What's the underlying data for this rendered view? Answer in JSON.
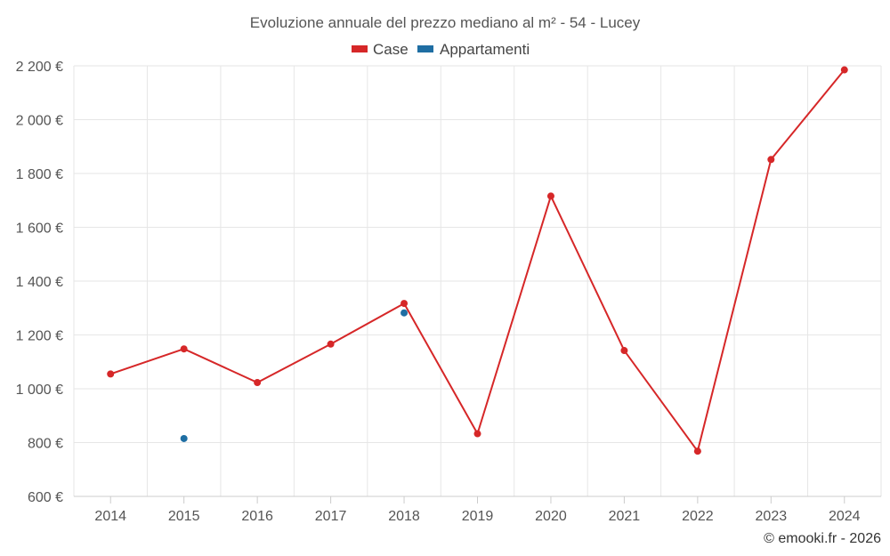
{
  "chart_data": {
    "type": "line",
    "title": "Evoluzione annuale del prezzo mediano al m² - 54 - Lucey",
    "categories": [
      "2014",
      "2015",
      "2016",
      "2017",
      "2018",
      "2019",
      "2020",
      "2021",
      "2022",
      "2023",
      "2024"
    ],
    "series": [
      {
        "name": "Case",
        "color": "#d62728",
        "values": [
          1055,
          1148,
          1023,
          1166,
          1317,
          833,
          1716,
          1142,
          768,
          1852,
          2185
        ]
      },
      {
        "name": "Appartamenti",
        "color": "#1f6ea3",
        "values": [
          null,
          815,
          null,
          null,
          1282,
          null,
          null,
          null,
          null,
          null,
          null
        ]
      }
    ],
    "ylim": [
      600,
      2200
    ],
    "yticks": [
      600,
      800,
      1000,
      1200,
      1400,
      1600,
      1800,
      2000,
      2200
    ],
    "ytick_labels": [
      "600 €",
      "800 €",
      "1 000 €",
      "1 200 €",
      "1 400 €",
      "1 600 €",
      "1 800 €",
      "2 000 €",
      "2 200 €"
    ],
    "grid": true,
    "legend_position": "top-center",
    "xlabel": "",
    "ylabel": ""
  },
  "credit": "© emooki.fr - 2026"
}
